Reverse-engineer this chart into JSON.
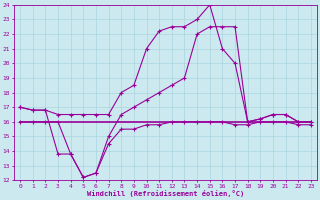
{
  "xlabel": "Windchill (Refroidissement éolien,°C)",
  "background_color": "#cce9f0",
  "grid_color": "#aad4de",
  "line_color": "#990099",
  "xlim": [
    -0.5,
    23.5
  ],
  "ylim": [
    12,
    24
  ],
  "xticks": [
    0,
    1,
    2,
    3,
    4,
    5,
    6,
    7,
    8,
    9,
    10,
    11,
    12,
    13,
    14,
    15,
    16,
    17,
    18,
    19,
    20,
    21,
    22,
    23
  ],
  "yticks": [
    12,
    13,
    14,
    15,
    16,
    17,
    18,
    19,
    20,
    21,
    22,
    23,
    24
  ],
  "series": {
    "line1_x": [
      0,
      1,
      2,
      3,
      4,
      5,
      6,
      7,
      8,
      9,
      10,
      11,
      12,
      13,
      14,
      15,
      16,
      17,
      18,
      19,
      20,
      21,
      22,
      23
    ],
    "line1_y": [
      17.0,
      16.8,
      16.8,
      16.5,
      16.5,
      16.5,
      16.5,
      16.5,
      18.0,
      18.5,
      21.0,
      22.2,
      22.5,
      22.5,
      23.0,
      24.0,
      21.0,
      20.0,
      16.0,
      16.2,
      16.5,
      16.5,
      16.0,
      16.0
    ],
    "line2_x": [
      0,
      1,
      2,
      3,
      4,
      5,
      6,
      7,
      8,
      9,
      10,
      11,
      12,
      13,
      14,
      15,
      16,
      17,
      18,
      19,
      20,
      21,
      22,
      23
    ],
    "line2_y": [
      16.0,
      16.0,
      16.0,
      16.0,
      16.0,
      16.0,
      16.0,
      16.0,
      16.0,
      16.0,
      16.0,
      16.0,
      16.0,
      16.0,
      16.0,
      16.0,
      16.0,
      16.0,
      16.0,
      16.0,
      16.0,
      16.0,
      16.0,
      16.0
    ],
    "line3_x": [
      0,
      1,
      2,
      3,
      4,
      5,
      6,
      7,
      8,
      9,
      10,
      11,
      12,
      13,
      14,
      15,
      16,
      17,
      18,
      19,
      20,
      21,
      22,
      23
    ],
    "line3_y": [
      16.0,
      16.0,
      16.0,
      16.0,
      13.8,
      12.2,
      12.5,
      14.5,
      15.5,
      15.5,
      15.8,
      15.8,
      16.0,
      16.0,
      16.0,
      16.0,
      16.0,
      15.8,
      15.8,
      16.0,
      16.0,
      16.0,
      15.8,
      15.8
    ],
    "line4_x": [
      0,
      1,
      2,
      3,
      4,
      5,
      6,
      7,
      8,
      9,
      10,
      11,
      12,
      13,
      14,
      15,
      16,
      17,
      18,
      19,
      20,
      21,
      22,
      23
    ],
    "line4_y": [
      17.0,
      16.8,
      16.8,
      13.8,
      13.8,
      12.2,
      12.5,
      15.0,
      16.5,
      17.0,
      17.5,
      18.0,
      18.5,
      19.0,
      22.0,
      22.5,
      22.5,
      22.5,
      16.0,
      16.2,
      16.5,
      16.5,
      16.0,
      16.0
    ]
  }
}
